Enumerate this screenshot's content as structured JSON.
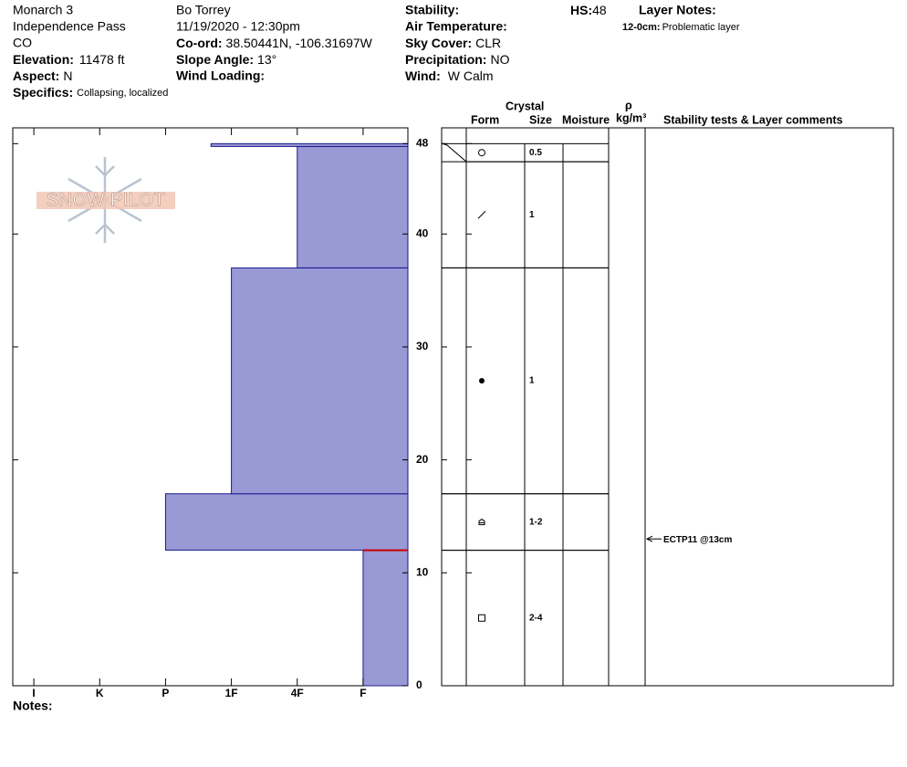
{
  "header": {
    "site": "Monarch 3",
    "location": "Independence Pass",
    "state": "CO",
    "elevation": {
      "label": "Elevation:",
      "value": "11478 ft"
    },
    "aspect": {
      "label": "Aspect:",
      "value": "N"
    },
    "specifics": {
      "label": "Specifics:",
      "value": "Collapsing, localized"
    },
    "observer": "Bo Torrey",
    "datetime": "11/19/2020 - 12:30pm",
    "coord": {
      "label": "Co-ord:",
      "value": "38.50441N, -106.31697W"
    },
    "slope_angle": {
      "label": "Slope Angle:",
      "value": "13°"
    },
    "wind_loading": {
      "label": "Wind Loading:"
    },
    "stability": {
      "label": "Stability:"
    },
    "air_temperature": {
      "label": "Air Temperature:"
    },
    "sky_cover": {
      "label": "Sky Cover:",
      "value": "CLR"
    },
    "precipitation": {
      "label": "Precipitation:",
      "value": "NO"
    },
    "wind": {
      "label": "Wind:",
      "value": "W Calm"
    },
    "hs": {
      "label": "HS:",
      "value": "48"
    }
  },
  "layer_notes": {
    "title": "Layer Notes:",
    "items": [
      {
        "range": "12-0cm:",
        "text": "Problematic layer"
      }
    ]
  },
  "logo": "SNOW PILOT",
  "columns": {
    "crystal": "Crystal",
    "form": "Form",
    "size": "Size",
    "moisture": "Moisture",
    "density_symbol": "ρ",
    "density_unit": "kg/m³",
    "comments": "Stability tests & Layer comments"
  },
  "notes_label": "Notes:",
  "chart_data": {
    "type": "hardness_profile",
    "ylim": [
      0,
      49.4
    ],
    "yticks": [
      0,
      10,
      20,
      30,
      40,
      48
    ],
    "xlim": [
      0.32,
      6.32
    ],
    "xticks": [
      {
        "value": 1,
        "label": "F"
      },
      {
        "value": 2,
        "label": "4F"
      },
      {
        "value": 3,
        "label": "1F"
      },
      {
        "value": 4,
        "label": "P"
      },
      {
        "value": 5,
        "label": "K"
      },
      {
        "value": 6,
        "label": "I"
      }
    ],
    "x_reversed": true,
    "color": "#9999d6",
    "edge_color": "#1a1a8c",
    "layers": [
      {
        "bottom": 0,
        "top": 12,
        "hardness": 1
      },
      {
        "bottom": 12,
        "top": 17,
        "hardness": 4
      },
      {
        "bottom": 17,
        "top": 37,
        "hardness": 3
      },
      {
        "bottom": 37,
        "top": 47.75,
        "hardness": 2
      },
      {
        "bottom": 47.75,
        "top": 48,
        "hardness": 3.31
      }
    ],
    "problem_layer": {
      "depth": 12,
      "color": "#cc0000"
    },
    "grain_layers": [
      {
        "bottom": 46.4,
        "top": 48,
        "size": "0.5"
      },
      {
        "bottom": 37,
        "top": 46.4,
        "size": "1"
      },
      {
        "bottom": 17,
        "top": 37,
        "size": "1"
      },
      {
        "bottom": 12,
        "top": 17,
        "size": "1-2"
      },
      {
        "bottom": 0,
        "top": 12,
        "size": "2-4"
      }
    ],
    "stability_tests": [
      {
        "depth": 13,
        "label": "ECTP11 @13cm"
      }
    ]
  }
}
